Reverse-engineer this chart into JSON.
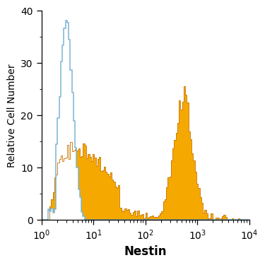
{
  "title": "",
  "xlabel": "Nestin",
  "ylabel": "Relative Cell Number",
  "xlim_log": [
    0,
    4
  ],
  "ylim": [
    0,
    40
  ],
  "yticks": [
    0,
    10,
    20,
    30,
    40
  ],
  "xlabel_fontsize": 12,
  "ylabel_fontsize": 10,
  "tick_fontsize": 10,
  "blue_color": "#7ab4d4",
  "orange_fill_color": "#f5a800",
  "orange_edge_color": "#cc7700",
  "background_color": "#ffffff",
  "n_bins": 130,
  "seed": 12
}
